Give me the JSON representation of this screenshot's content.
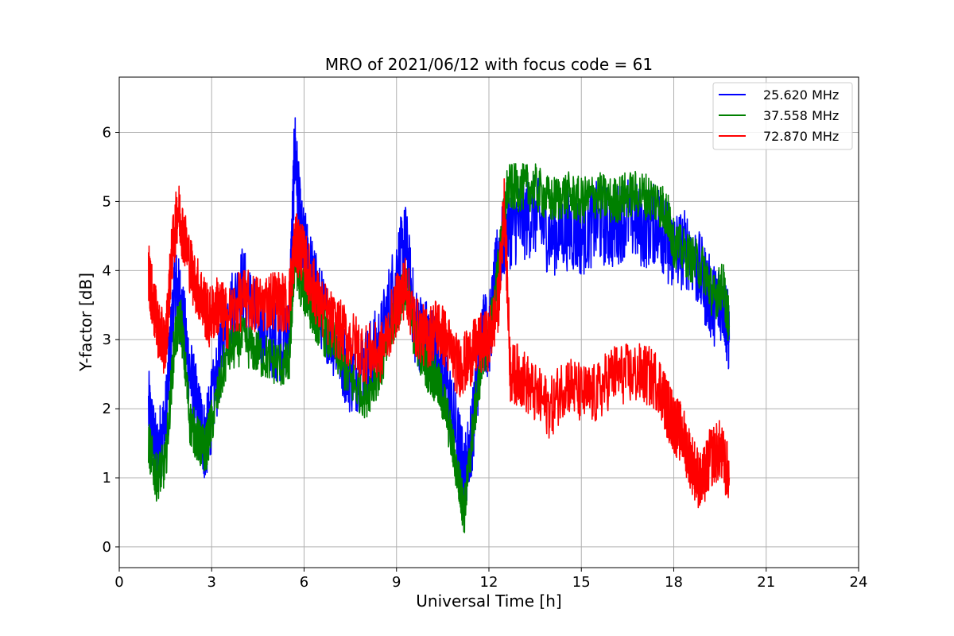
{
  "chart_data": {
    "type": "line",
    "title": "MRO of 2021/06/12 with focus code = 61",
    "xlabel": "Universal Time [h]",
    "ylabel": "Y-factor [dB]",
    "xlim": [
      0,
      24
    ],
    "ylim": [
      -0.3,
      6.8
    ],
    "x_ticks": [
      0,
      3,
      6,
      9,
      12,
      15,
      18,
      21,
      24
    ],
    "y_ticks": [
      0,
      1,
      2,
      3,
      4,
      5,
      6
    ],
    "grid": true,
    "legend_position": "top-right",
    "series": [
      {
        "name": "25.620 MHz",
        "color": "#0000ff",
        "x": [
          0.95,
          1.2,
          1.5,
          1.8,
          2.0,
          2.3,
          2.6,
          2.8,
          3.0,
          3.5,
          4.0,
          4.5,
          5.0,
          5.5,
          5.7,
          5.9,
          6.2,
          6.5,
          7.0,
          7.5,
          8.0,
          8.5,
          9.0,
          9.3,
          9.6,
          10.0,
          10.3,
          10.6,
          11.0,
          11.2,
          11.5,
          11.8,
          12.0,
          12.3,
          12.6,
          13.0,
          13.5,
          14.0,
          14.5,
          15.0,
          15.5,
          16.0,
          16.5,
          17.0,
          17.5,
          17.8,
          18.0,
          18.5,
          19.0,
          19.3,
          19.6,
          19.8
        ],
        "values": [
          2.0,
          1.3,
          1.8,
          3.8,
          3.5,
          2.5,
          1.8,
          1.5,
          2.0,
          3.3,
          3.8,
          3.2,
          3.0,
          3.0,
          5.8,
          4.5,
          4.0,
          3.5,
          3.0,
          2.5,
          2.6,
          3.0,
          4.0,
          4.4,
          3.2,
          3.0,
          2.8,
          2.4,
          1.5,
          1.0,
          1.8,
          3.2,
          3.0,
          4.2,
          4.6,
          4.7,
          4.8,
          4.5,
          4.6,
          4.5,
          4.7,
          4.6,
          4.8,
          4.6,
          4.7,
          4.4,
          4.3,
          4.3,
          3.8,
          3.5,
          3.6,
          3.0
        ],
        "noise": 0.6
      },
      {
        "name": "37.558 MHz",
        "color": "#008000",
        "x": [
          0.95,
          1.2,
          1.5,
          1.8,
          2.0,
          2.3,
          2.6,
          2.8,
          3.0,
          3.5,
          4.0,
          4.5,
          5.0,
          5.5,
          5.7,
          5.9,
          6.2,
          6.5,
          7.0,
          7.5,
          8.0,
          8.5,
          9.0,
          9.3,
          9.6,
          10.0,
          10.3,
          10.6,
          11.0,
          11.2,
          11.5,
          11.8,
          12.0,
          12.3,
          12.6,
          13.0,
          13.5,
          14.0,
          14.5,
          15.0,
          15.5,
          16.0,
          16.5,
          17.0,
          17.5,
          17.8,
          18.0,
          18.5,
          19.0,
          19.3,
          19.6,
          19.8
        ],
        "values": [
          1.5,
          1.0,
          1.2,
          3.0,
          3.3,
          1.8,
          1.5,
          1.4,
          1.8,
          2.8,
          3.0,
          2.8,
          2.7,
          2.6,
          4.2,
          3.8,
          3.5,
          3.2,
          2.9,
          2.4,
          2.2,
          2.6,
          3.4,
          3.8,
          3.0,
          2.6,
          2.4,
          2.0,
          1.0,
          0.5,
          1.8,
          2.8,
          3.0,
          4.0,
          5.2,
          5.2,
          5.2,
          5.0,
          5.1,
          5.0,
          5.1,
          5.0,
          5.1,
          5.1,
          5.0,
          4.8,
          4.4,
          4.2,
          4.0,
          3.6,
          3.8,
          3.2
        ],
        "noise": 0.35
      },
      {
        "name": "72.870 MHz",
        "color": "#ff0000",
        "x": [
          0.95,
          1.1,
          1.3,
          1.5,
          1.7,
          1.9,
          2.1,
          2.4,
          2.7,
          2.9,
          3.2,
          3.5,
          4.0,
          4.5,
          5.0,
          5.5,
          5.7,
          5.9,
          6.2,
          6.5,
          7.0,
          7.5,
          8.0,
          8.5,
          9.0,
          9.3,
          9.6,
          10.0,
          10.3,
          10.6,
          11.0,
          11.3,
          11.6,
          12.0,
          12.3,
          12.5,
          12.7,
          13.0,
          13.5,
          14.0,
          14.5,
          15.0,
          15.5,
          16.0,
          16.5,
          17.0,
          17.5,
          17.8,
          18.0,
          18.3,
          18.6,
          18.9,
          19.2,
          19.5,
          19.8
        ],
        "values": [
          4.0,
          3.5,
          3.1,
          2.9,
          4.2,
          4.9,
          4.5,
          3.9,
          3.6,
          3.3,
          3.5,
          3.3,
          3.6,
          3.5,
          3.6,
          3.5,
          4.4,
          4.3,
          3.9,
          3.5,
          3.2,
          3.0,
          2.8,
          2.8,
          3.5,
          3.8,
          3.2,
          3.0,
          3.2,
          3.0,
          2.6,
          2.7,
          2.9,
          3.0,
          3.5,
          5.0,
          2.5,
          2.5,
          2.2,
          2.0,
          2.4,
          2.2,
          2.2,
          2.5,
          2.5,
          2.5,
          2.4,
          2.0,
          1.8,
          1.6,
          1.2,
          0.9,
          1.3,
          1.4,
          1.0
        ],
        "noise": 0.45
      }
    ]
  }
}
